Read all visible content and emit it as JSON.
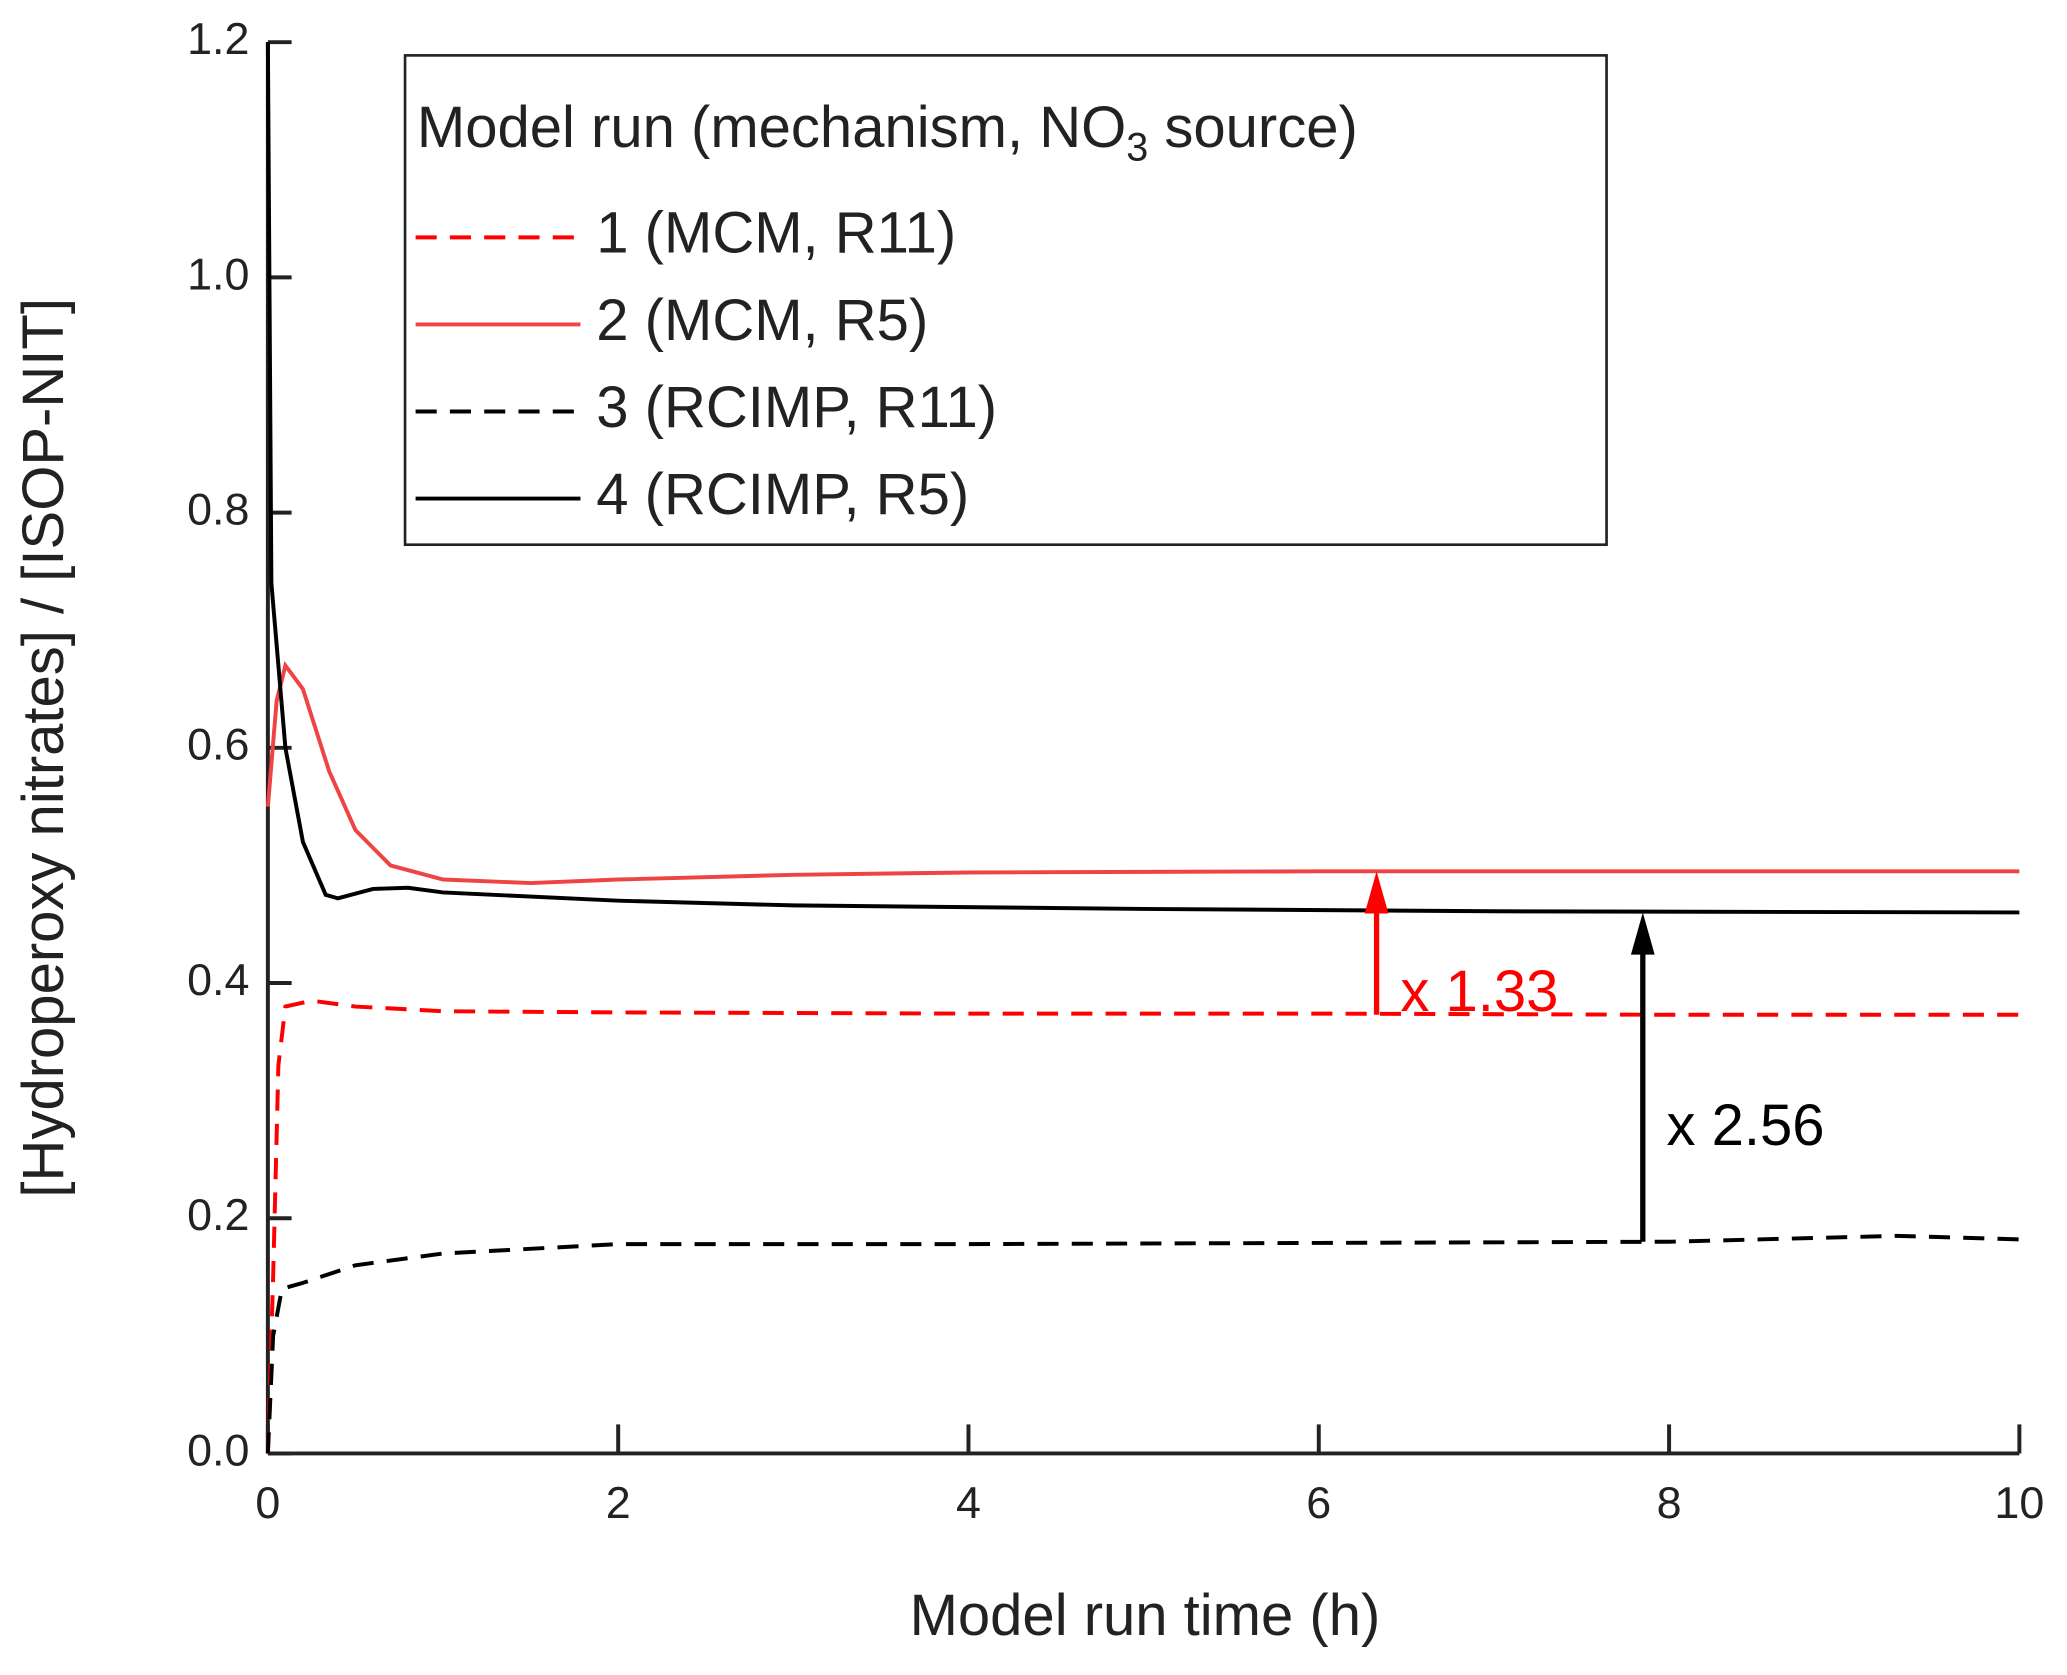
{
  "chart_data": {
    "type": "line",
    "x_label": "Model run time (h)",
    "y_label": "[Hydroperoxy nitrates] / [ISOP-NIT]",
    "legend_title": [
      "Model run (mechanism, NO",
      "3",
      " source)"
    ],
    "xlim": [
      0,
      10
    ],
    "xticks": [
      0,
      2,
      4,
      6,
      8,
      10
    ],
    "ylim": [
      0,
      1.2
    ],
    "yticks": [
      {
        "value": 0,
        "label": "0.0"
      },
      0.2,
      0.4,
      0.6,
      0.8,
      {
        "value": 1,
        "label": "1.0"
      },
      1.2
    ],
    "series": [
      {
        "name": "1 (MCM, R11)",
        "color": "#ff0000",
        "dashed": true,
        "x": [
          0,
          0.03,
          0.06,
          0.1,
          0.25,
          0.5,
          1,
          2,
          4,
          6,
          8,
          10
        ],
        "values": [
          0,
          0.15,
          0.33,
          0.38,
          0.385,
          0.38,
          0.376,
          0.375,
          0.374,
          0.374,
          0.373,
          0.373
        ]
      },
      {
        "name": "2 (MCM, R5)",
        "color": "#ee4444",
        "dashed": false,
        "x": [
          0,
          0.05,
          0.1,
          0.2,
          0.35,
          0.5,
          0.7,
          1,
          1.5,
          2,
          3,
          4,
          6,
          10
        ],
        "values": [
          0.55,
          0.64,
          0.67,
          0.65,
          0.58,
          0.53,
          0.5,
          0.488,
          0.485,
          0.488,
          0.492,
          0.494,
          0.495,
          0.495
        ]
      },
      {
        "name": "3 (RCIMP, R11)",
        "color": "#000000",
        "dashed": true,
        "x": [
          0,
          0.03,
          0.08,
          0.2,
          0.5,
          1,
          2,
          4,
          6,
          8,
          9.3,
          10
        ],
        "values": [
          0,
          0.1,
          0.14,
          0.145,
          0.16,
          0.17,
          0.178,
          0.178,
          0.179,
          0.18,
          0.185,
          0.182
        ]
      },
      {
        "name": "4 (RCIMP, R5)",
        "color": "#000000",
        "dashed": false,
        "x": [
          0,
          0.02,
          0.1,
          0.2,
          0.33,
          0.4,
          0.6,
          0.8,
          1,
          2,
          3,
          5,
          7,
          10
        ],
        "values": [
          1.2,
          0.74,
          0.6,
          0.52,
          0.475,
          0.472,
          0.48,
          0.481,
          0.477,
          0.47,
          0.466,
          0.463,
          0.461,
          0.46
        ]
      }
    ],
    "annotations": [
      {
        "text": "x 1.33",
        "color": "#ff0000",
        "x": 6.33,
        "y_from": 0.373,
        "y_to": 0.495
      },
      {
        "text": "x 2.56",
        "color": "#000000",
        "x": 7.85,
        "y_from": 0.18,
        "y_to": 0.46
      }
    ]
  }
}
